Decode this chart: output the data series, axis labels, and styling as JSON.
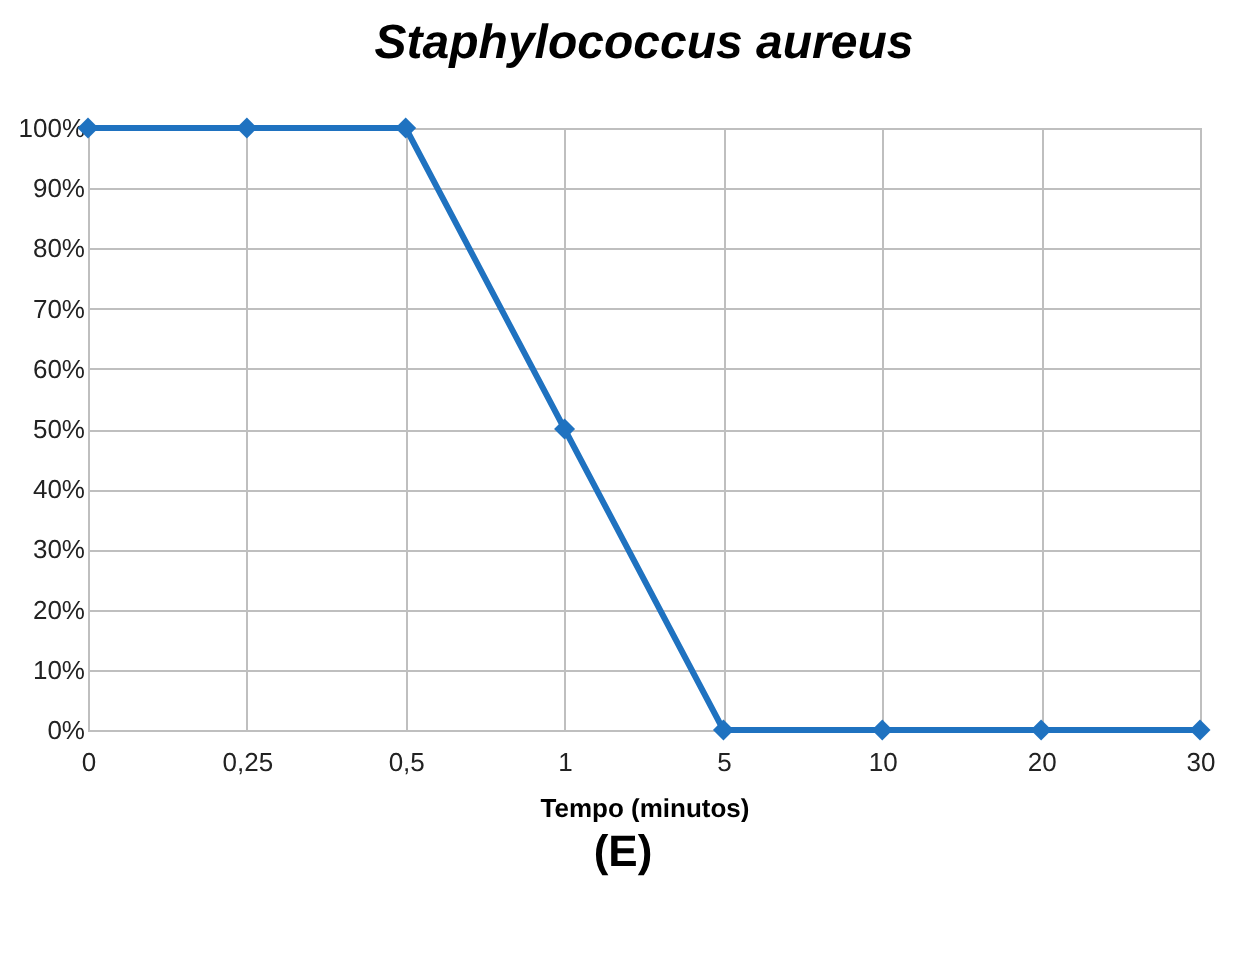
{
  "chart_data": {
    "type": "line",
    "title": "Staphylococcus aureus",
    "xlabel": "Tempo (minutos)",
    "categories": [
      "0",
      "0,25",
      "0,5",
      "1",
      "5",
      "10",
      "20",
      "30"
    ],
    "series": [
      {
        "color": "#1f72c0",
        "values": [
          100,
          100,
          100,
          50,
          0,
          0,
          0,
          0
        ]
      }
    ],
    "ylim": [
      0,
      100
    ],
    "yticks": [
      {
        "value": 0,
        "label": "0%"
      },
      {
        "value": 10,
        "label": "10%"
      },
      {
        "value": 20,
        "label": "20%"
      },
      {
        "value": 30,
        "label": "30%"
      },
      {
        "value": 40,
        "label": "40%"
      },
      {
        "value": 50,
        "label": "50%"
      },
      {
        "value": 60,
        "label": "60%"
      },
      {
        "value": 70,
        "label": "70%"
      },
      {
        "value": 80,
        "label": "80%"
      },
      {
        "value": 90,
        "label": "90%"
      },
      {
        "value": 100,
        "label": "100%"
      }
    ],
    "grid": true,
    "marker": "diamond",
    "annotations": [
      "(E)"
    ]
  }
}
